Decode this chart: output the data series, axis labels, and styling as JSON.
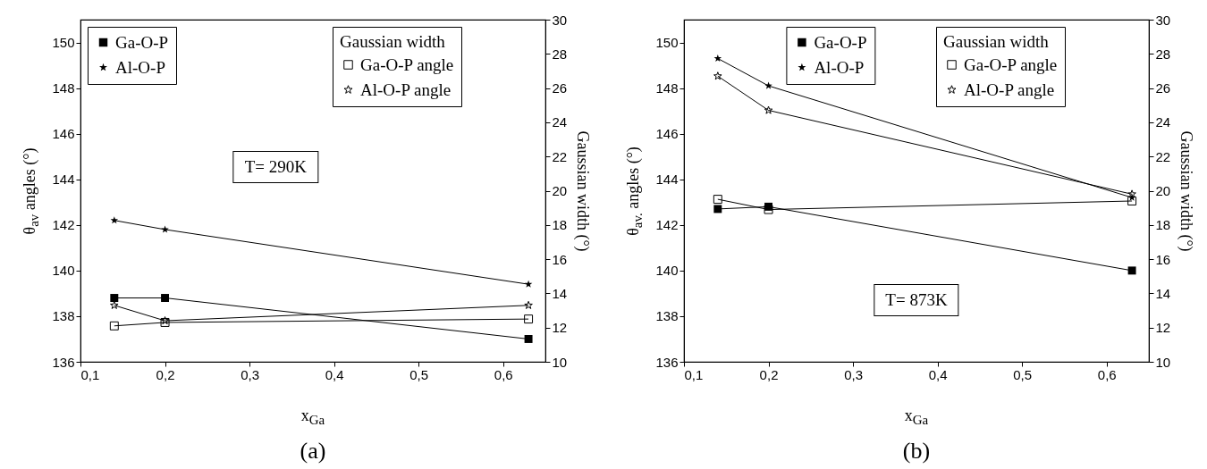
{
  "chart_data": [
    {
      "type": "line",
      "xlabel": "x$_{Ga}$",
      "ylabel": "θ$_{av}$ angles (°)",
      "y2label": "Gaussian width (°)",
      "legend_title": "Gaussian width",
      "legend": "top left",
      "annotations": [
        "T= 290K",
        "(a)"
      ],
      "x": [
        0.14,
        0.2,
        0.63
      ],
      "xlim": [
        0.1,
        0.65
      ],
      "xticks": [
        {
          "value": 0.1,
          "label": "0,1"
        },
        {
          "value": 0.2,
          "label": "0,2"
        },
        {
          "value": 0.3,
          "label": "0,3"
        },
        {
          "value": 0.4,
          "label": "0,4"
        },
        {
          "value": 0.5,
          "label": "0,5"
        },
        {
          "value": 0.6,
          "label": "0,6"
        }
      ],
      "ylim": [
        136,
        151
      ],
      "yticks": [
        136,
        138,
        140,
        142,
        144,
        146,
        148,
        150
      ],
      "y2lim": [
        10,
        30
      ],
      "y2ticks": [
        10,
        12,
        14,
        16,
        18,
        20,
        22,
        24,
        26,
        28,
        30
      ],
      "series": [
        {
          "name": "Ga-O-P",
          "color": "#000000",
          "marker": "square",
          "values": [
            138.8,
            138.8,
            137.0
          ]
        },
        {
          "name": "Al-O-P",
          "color": "#000000",
          "marker": "star",
          "values": [
            142.2,
            141.8,
            139.4
          ]
        },
        {
          "name": "Ga-O-P angle",
          "color": "#000000",
          "marker": "square",
          "axis": "y2",
          "values": [
            12.1,
            12.3,
            12.5
          ]
        },
        {
          "name": "Al-O-P angle",
          "color": "#000000",
          "marker": "star",
          "axis": "y2",
          "values": [
            13.3,
            12.4,
            13.3
          ]
        }
      ]
    },
    {
      "type": "line",
      "xlabel": "x$_{Ga}$",
      "ylabel": "θ$_{av.}$ angles (°)",
      "y2label": "Gaussian width (°)",
      "legend_title": "Gaussian width",
      "legend": "top",
      "annotations": [
        "T= 873K",
        "(b)"
      ],
      "x": [
        0.14,
        0.2,
        0.63
      ],
      "xlim": [
        0.1,
        0.65
      ],
      "xticks": [
        {
          "value": 0.1,
          "label": "0,1"
        },
        {
          "value": 0.2,
          "label": "0,2"
        },
        {
          "value": 0.3,
          "label": "0,3"
        },
        {
          "value": 0.4,
          "label": "0,4"
        },
        {
          "value": 0.5,
          "label": "0,5"
        },
        {
          "value": 0.6,
          "label": "0,6"
        }
      ],
      "ylim": [
        136,
        151
      ],
      "yticks": [
        136,
        138,
        140,
        142,
        144,
        146,
        148,
        150
      ],
      "y2lim": [
        10,
        30
      ],
      "y2ticks": [
        10,
        12,
        14,
        16,
        18,
        20,
        22,
        24,
        26,
        28,
        30
      ],
      "series": [
        {
          "name": "Ga-O-P",
          "color": "#000000",
          "marker": "square",
          "values": [
            142.7,
            142.8,
            140.0
          ]
        },
        {
          "name": "Al-O-P",
          "color": "#000000",
          "marker": "star",
          "values": [
            149.3,
            148.1,
            143.2
          ]
        },
        {
          "name": "Ga-O-P angle",
          "color": "#000000",
          "marker": "square",
          "axis": "y2",
          "values": [
            19.5,
            18.9,
            19.4
          ]
        },
        {
          "name": "Al-O-P angle",
          "color": "#000000",
          "marker": "star",
          "axis": "y2",
          "values": [
            26.7,
            24.7,
            19.8
          ]
        }
      ]
    }
  ]
}
